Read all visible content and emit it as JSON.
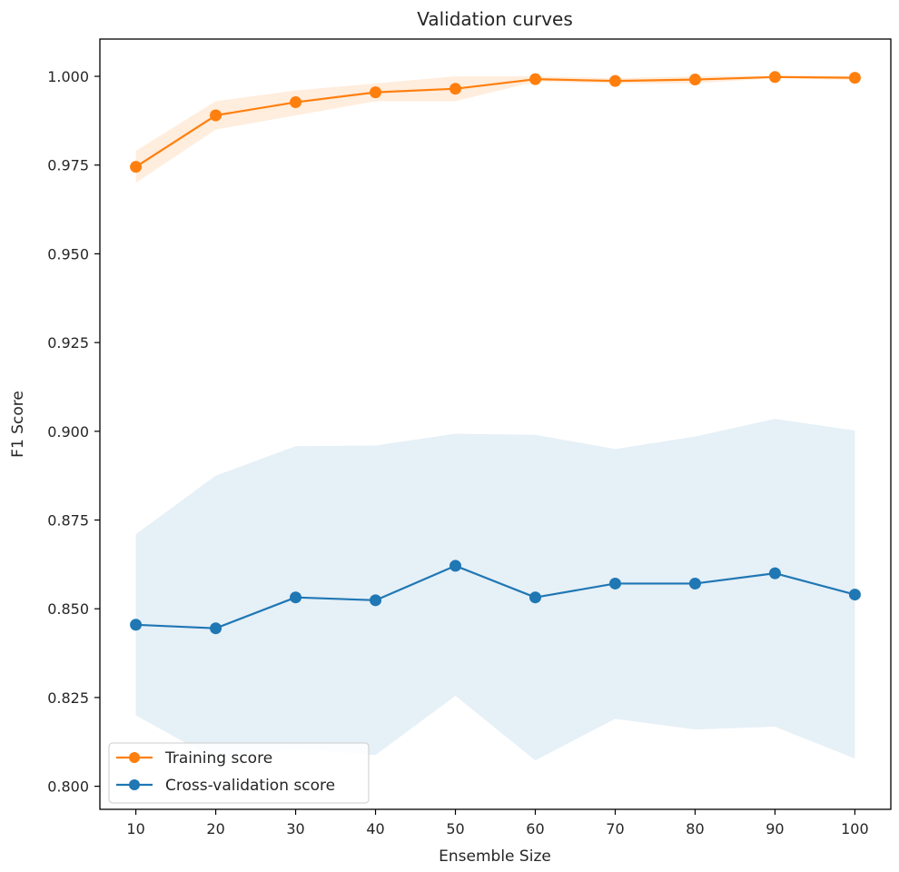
{
  "chart_data": {
    "type": "line",
    "title": "Validation curves",
    "xlabel": "Ensemble Size",
    "ylabel": "F1 Score",
    "x": [
      10,
      20,
      30,
      40,
      50,
      60,
      70,
      80,
      90,
      100
    ],
    "xlim": [
      5.5,
      104.5
    ],
    "ylim": [
      0.7935,
      1.0105
    ],
    "xticks": [
      10,
      20,
      30,
      40,
      50,
      60,
      70,
      80,
      90,
      100
    ],
    "xtick_labels": [
      "10",
      "20",
      "30",
      "40",
      "50",
      "60",
      "70",
      "80",
      "90",
      "100"
    ],
    "yticks": [
      0.8,
      0.825,
      0.85,
      0.875,
      0.9,
      0.925,
      0.95,
      0.975,
      1.0
    ],
    "ytick_labels": [
      "0.800",
      "0.825",
      "0.850",
      "0.875",
      "0.900",
      "0.925",
      "0.950",
      "0.975",
      "1.000"
    ],
    "grid": false,
    "legend_position": "lower-left",
    "series": [
      {
        "name": "Training score",
        "color": "#ff7f0e",
        "values": [
          0.9745,
          0.989,
          0.9927,
          0.9955,
          0.9965,
          0.9992,
          0.9987,
          0.9991,
          0.9998,
          0.9996
        ],
        "band_lower": [
          0.97,
          0.985,
          0.989,
          0.993,
          0.993,
          0.9985,
          0.998,
          0.998,
          0.9995,
          0.999
        ],
        "band_upper": [
          0.979,
          0.993,
          0.996,
          0.998,
          1.0,
          1.0,
          0.9995,
          1.0,
          1.0002,
          1.0
        ]
      },
      {
        "name": "Cross-validation score",
        "color": "#1f77b4",
        "values": [
          0.8455,
          0.8445,
          0.8532,
          0.8524,
          0.8621,
          0.8532,
          0.8571,
          0.8571,
          0.86,
          0.854
        ],
        "band_lower": [
          0.82,
          0.8075,
          0.8105,
          0.8088,
          0.8255,
          0.8073,
          0.819,
          0.816,
          0.8168,
          0.8078
        ],
        "band_upper": [
          0.871,
          0.8875,
          0.8958,
          0.896,
          0.8993,
          0.899,
          0.895,
          0.8985,
          0.9035,
          0.9002
        ]
      }
    ]
  }
}
